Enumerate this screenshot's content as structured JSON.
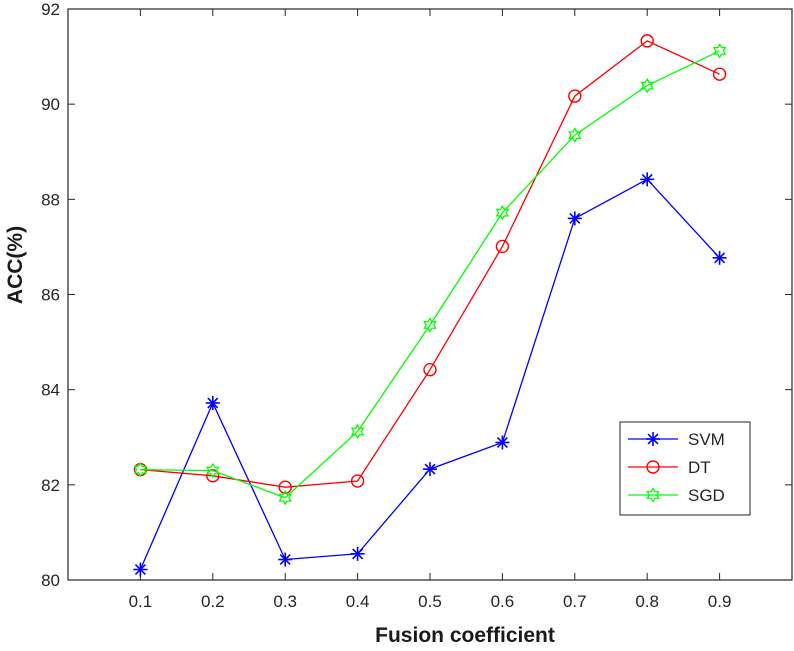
{
  "chart_data": {
    "type": "line",
    "xlabel": "Fusion coefficient",
    "ylabel": "ACC(%)",
    "x": [
      0.1,
      0.2,
      0.3,
      0.4,
      0.5,
      0.6,
      0.7,
      0.8,
      0.9
    ],
    "x_tick_labels": [
      "0.1",
      "0.2",
      "0.3",
      "0.4",
      "0.5",
      "0.6",
      "0.7",
      "0.8",
      "0.9"
    ],
    "xlim": [
      0,
      1
    ],
    "ylim": [
      80,
      92
    ],
    "y_ticks": [
      80,
      82,
      84,
      86,
      88,
      90,
      92
    ],
    "y_tick_labels": [
      "80",
      "82",
      "84",
      "86",
      "88",
      "90",
      "92"
    ],
    "grid": false,
    "legend_position": "lower-right",
    "series": [
      {
        "name": "SVM",
        "color": "#0000ff",
        "marker": "asterisk",
        "values": [
          80.22,
          83.72,
          80.43,
          80.55,
          82.33,
          82.89,
          87.6,
          88.42,
          86.77
        ]
      },
      {
        "name": "DT",
        "color": "#ff0000",
        "marker": "circle",
        "values": [
          82.32,
          82.19,
          81.95,
          82.08,
          84.42,
          87.01,
          90.17,
          91.33,
          90.63
        ]
      },
      {
        "name": "SGD",
        "color": "#00ff00",
        "marker": "hexagram",
        "values": [
          82.32,
          82.3,
          81.73,
          83.12,
          85.36,
          87.72,
          89.35,
          90.39,
          91.12
        ]
      }
    ]
  }
}
